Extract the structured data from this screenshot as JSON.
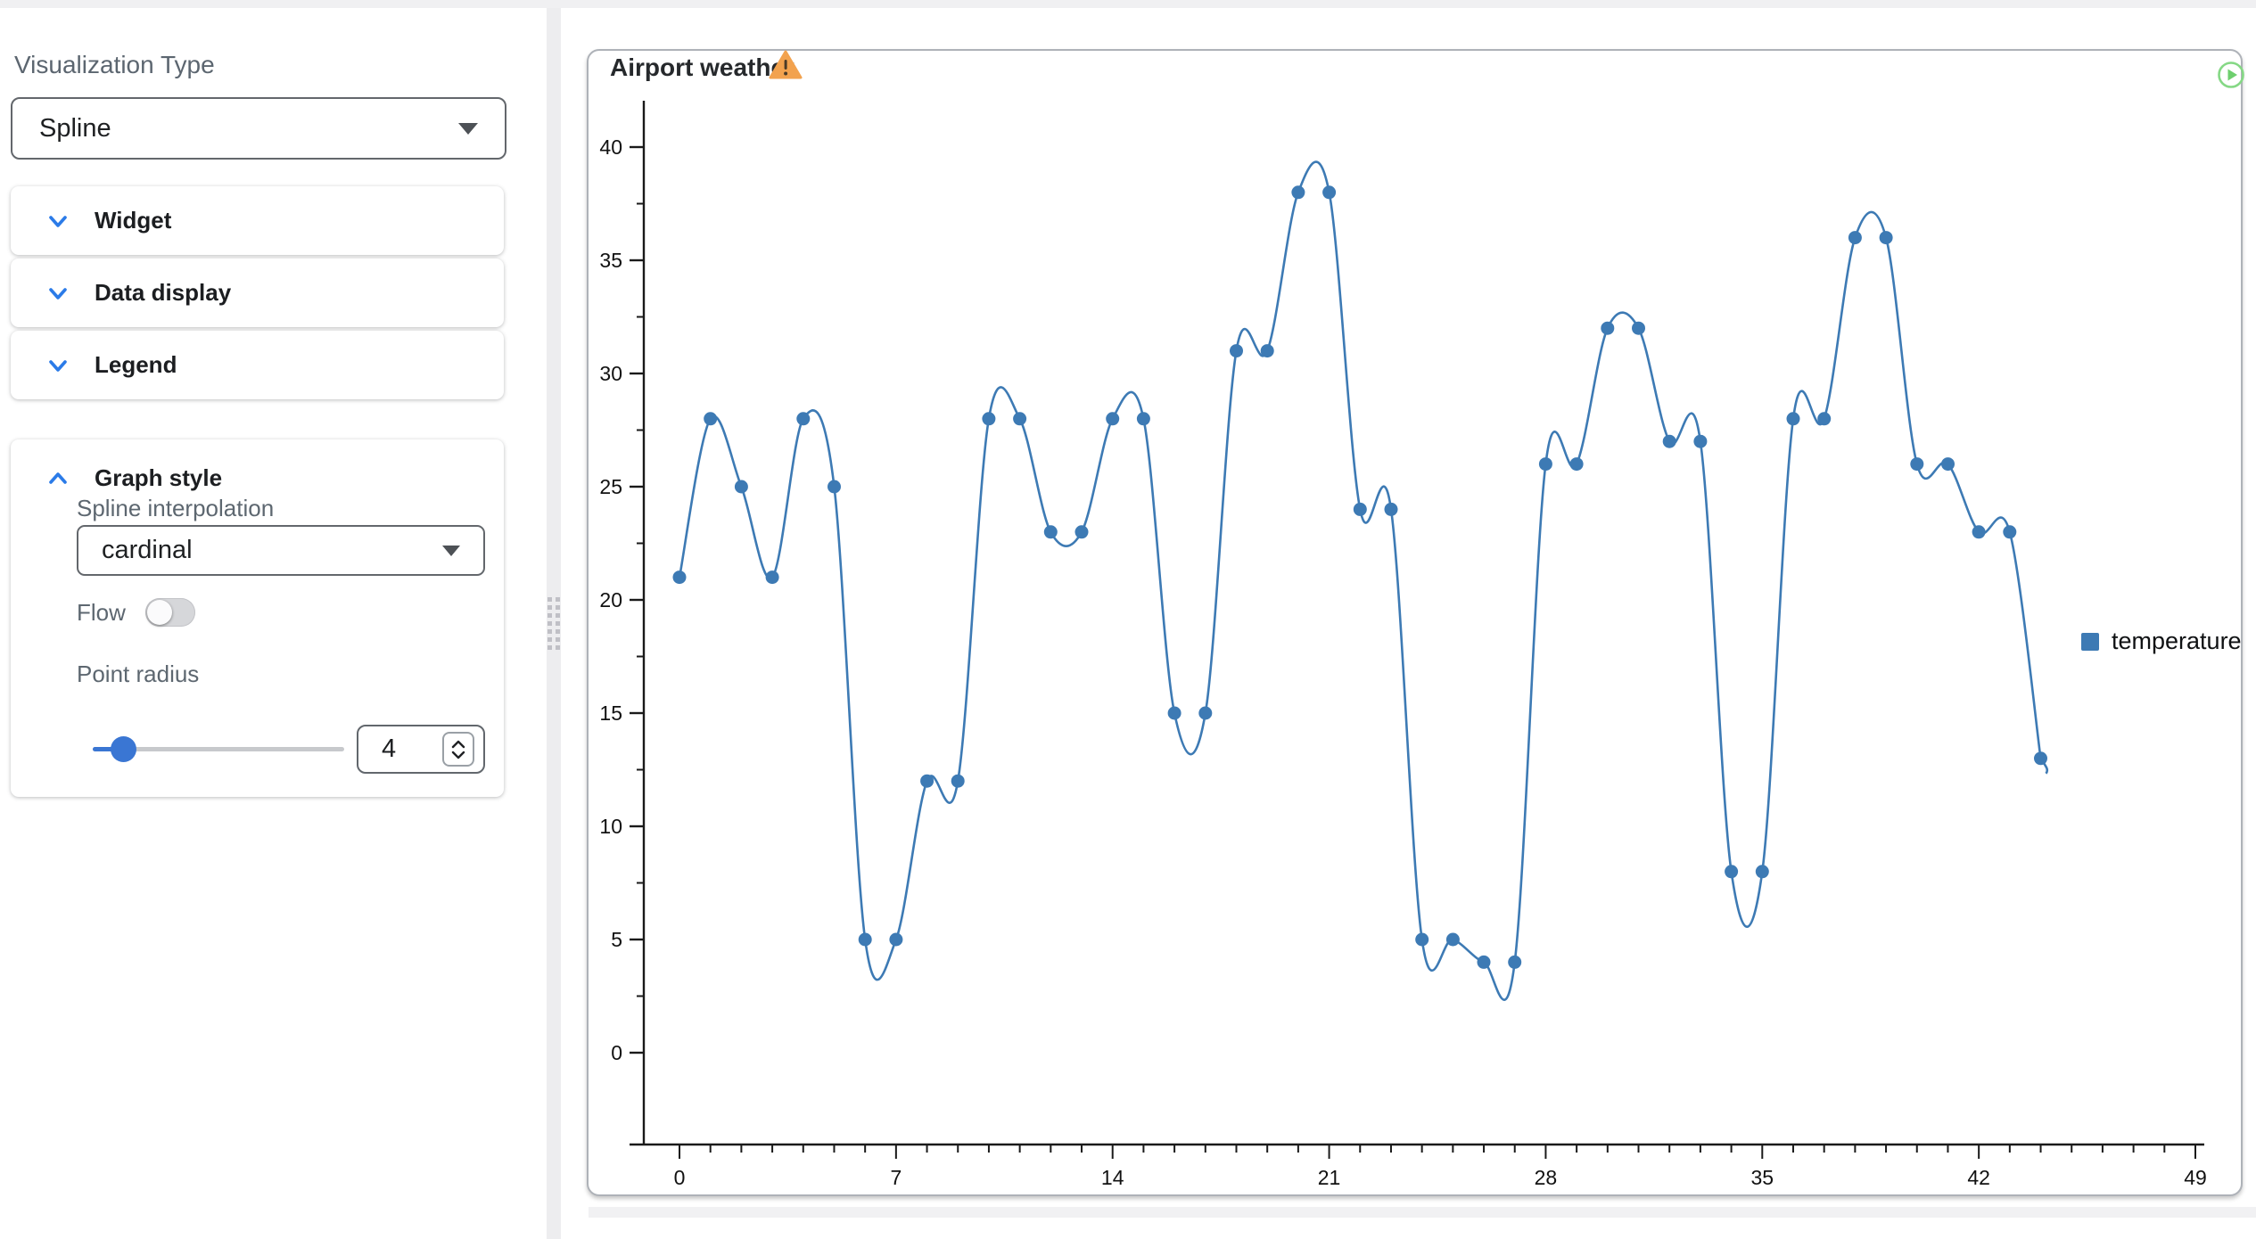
{
  "sidebar": {
    "viz_type": {
      "label": "Visualization Type",
      "value": "Spline"
    },
    "sections": [
      {
        "label": "Widget",
        "expanded": false
      },
      {
        "label": "Data display",
        "expanded": false
      },
      {
        "label": "Legend",
        "expanded": false
      },
      {
        "label": "Graph style",
        "expanded": true
      }
    ],
    "graph_style": {
      "spline_interpolation": {
        "label": "Spline interpolation",
        "value": "cardinal"
      },
      "flow": {
        "label": "Flow",
        "enabled": false
      },
      "point_radius": {
        "label": "Point radius",
        "value": "4"
      }
    }
  },
  "widget": {
    "title": "Airport weather",
    "warning_icon": "warning-triangle",
    "run_icon": "play-circle",
    "legend": [
      {
        "label": "temperature",
        "color": "#3d7ab4"
      }
    ]
  },
  "chart_data": {
    "type": "line",
    "interpolation": "cardinal",
    "title": "Airport weather",
    "xlabel": "",
    "ylabel": "",
    "grid": false,
    "legend_position": "right",
    "point_radius": 4,
    "xlim": [
      0,
      49
    ],
    "ylim": [
      0,
      40
    ],
    "x_tick_labels": [
      0,
      7,
      14,
      21,
      28,
      35,
      42,
      49
    ],
    "y_tick_labels": [
      0,
      5,
      10,
      15,
      20,
      25,
      30,
      35,
      40
    ],
    "series": [
      {
        "name": "temperature",
        "color": "#3d7ab4",
        "x": [
          0,
          1,
          2,
          3,
          4,
          5,
          6,
          7,
          8,
          9,
          10,
          11,
          12,
          13,
          14,
          15,
          16,
          17,
          18,
          19,
          20,
          21,
          22,
          23,
          24,
          25,
          26,
          27,
          28,
          29,
          30,
          31,
          32,
          33,
          34,
          35,
          36,
          37,
          38,
          39,
          40,
          41,
          42,
          43,
          44
        ],
        "y": [
          21,
          28,
          25,
          21,
          28,
          25,
          5,
          5,
          12,
          12,
          28,
          28,
          23,
          23,
          28,
          28,
          15,
          15,
          31,
          31,
          38,
          38,
          24,
          24,
          5,
          5,
          4,
          4,
          26,
          26,
          32,
          32,
          27,
          27,
          8,
          8,
          28,
          28,
          36,
          36,
          26,
          26,
          23,
          23,
          13
        ]
      }
    ]
  },
  "colors": {
    "accent_blue": "#2b7be8",
    "series_blue": "#3d7ab4",
    "warning_orange": "#f2a24e",
    "play_green": "#85d885",
    "label_gray": "#5d6770",
    "axis_black": "#1a1a1a"
  }
}
